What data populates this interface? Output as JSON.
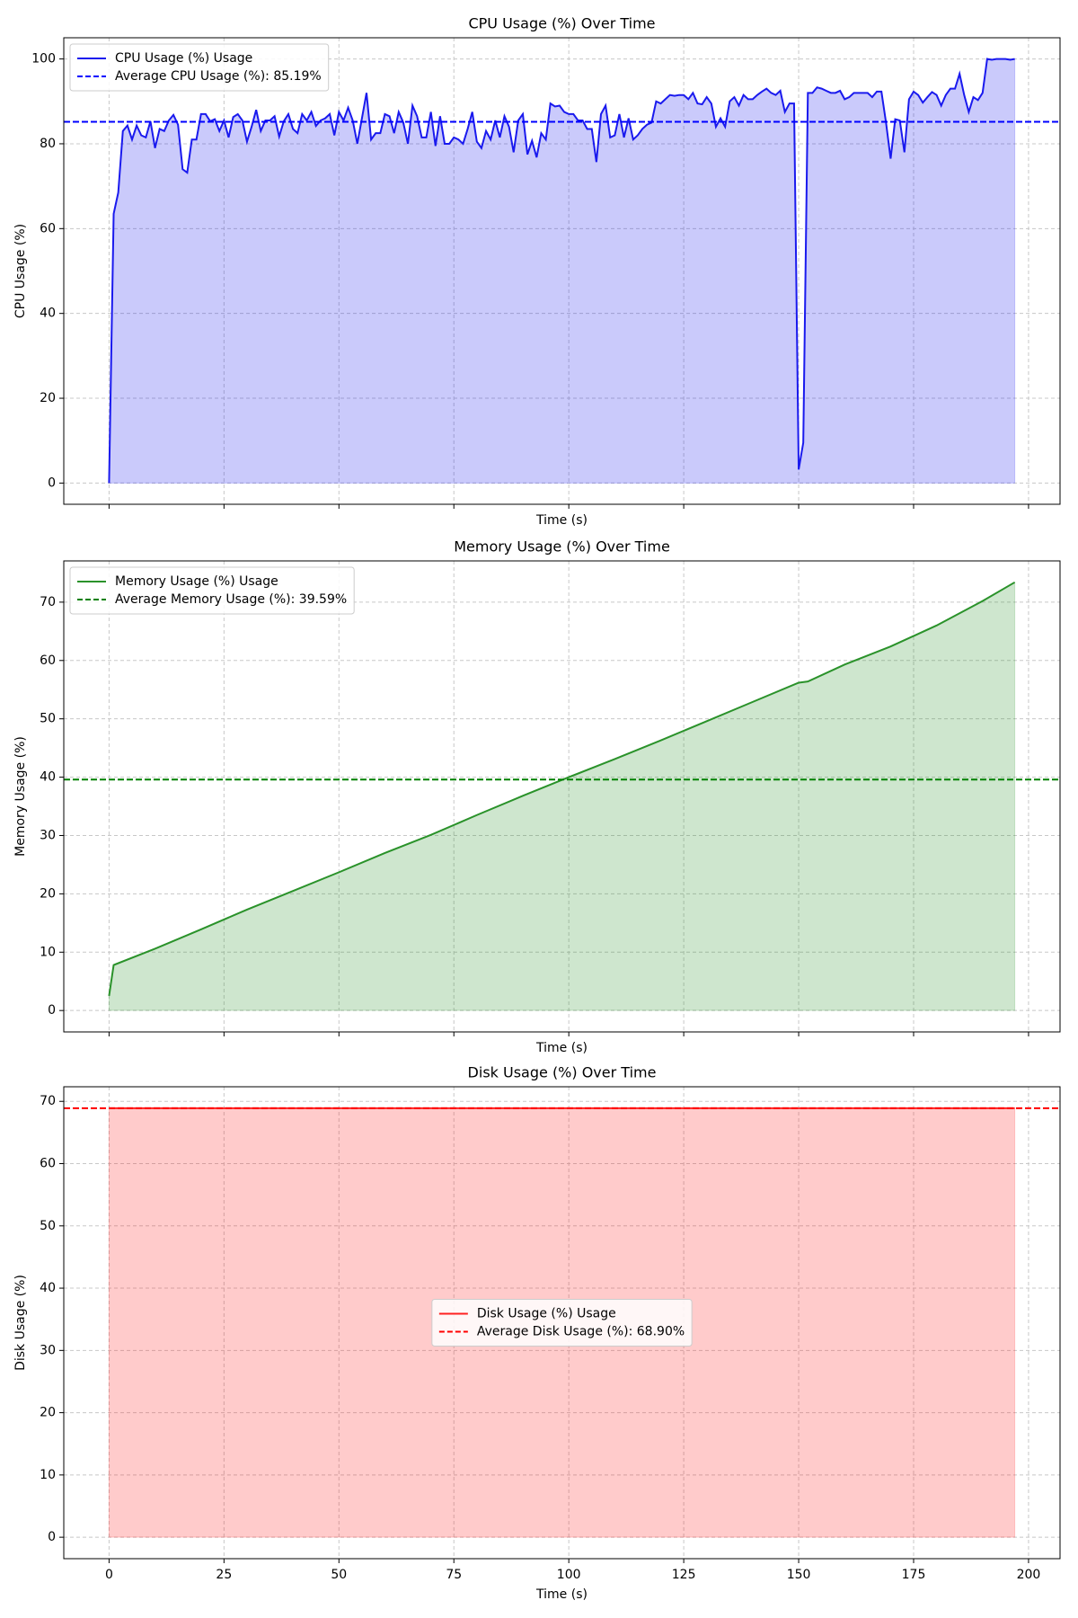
{
  "chart_data": [
    {
      "type": "line",
      "title": "CPU Usage (%) Over Time",
      "x_label": "Time (s)",
      "y_label": "CPU Usage (%)",
      "x": [
        0,
        1,
        2,
        3,
        4,
        5,
        6,
        7,
        8,
        9,
        10,
        11,
        12,
        13,
        14,
        15,
        16,
        17,
        18,
        19,
        20,
        21,
        22,
        23,
        24,
        25,
        26,
        27,
        28,
        29,
        30,
        31,
        32,
        33,
        34,
        35,
        36,
        37,
        38,
        39,
        40,
        41,
        42,
        43,
        44,
        45,
        46,
        47,
        48,
        49,
        50,
        51,
        52,
        53,
        54,
        55,
        56,
        57,
        58,
        59,
        60,
        61,
        62,
        63,
        64,
        65,
        66,
        67,
        68,
        69,
        70,
        71,
        72,
        73,
        74,
        75,
        76,
        77,
        78,
        79,
        80,
        81,
        82,
        83,
        84,
        85,
        86,
        87,
        88,
        89,
        90,
        91,
        92,
        93,
        94,
        95,
        96,
        97,
        98,
        99,
        100,
        101,
        102,
        103,
        104,
        105,
        106,
        107,
        108,
        109,
        110,
        111,
        112,
        113,
        114,
        115,
        116,
        117,
        118,
        119,
        120,
        121,
        122,
        123,
        124,
        125,
        126,
        127,
        128,
        129,
        130,
        131,
        132,
        133,
        134,
        135,
        136,
        137,
        138,
        139,
        140,
        141,
        142,
        143,
        144,
        145,
        146,
        147,
        148,
        149,
        150,
        151,
        152,
        153,
        154,
        155,
        156,
        157,
        158,
        159,
        160,
        161,
        162,
        163,
        164,
        165,
        166,
        167,
        168,
        169,
        170,
        171,
        172,
        173,
        174,
        175,
        176,
        177,
        178,
        179,
        180,
        181,
        182,
        183,
        184,
        185,
        186,
        187,
        188,
        189,
        190,
        191,
        192,
        193,
        194,
        195,
        196,
        197
      ],
      "series": [
        {
          "name": "CPU Usage (%) Usage",
          "color": "#1a1aee",
          "fill": true,
          "values": [
            0,
            63.5,
            68.5,
            83,
            84.3,
            81,
            84.3,
            82,
            81.5,
            85.3,
            79,
            83.5,
            83,
            85.5,
            86.8,
            84.5,
            74,
            73.2,
            81,
            81,
            87,
            87,
            85.3,
            85.8,
            83,
            85.5,
            81.5,
            86.3,
            87,
            85.5,
            80.5,
            84,
            88,
            83,
            85.5,
            85.5,
            86.5,
            81.7,
            85.3,
            87,
            83.5,
            82.5,
            87,
            85.5,
            87.5,
            84.2,
            85.5,
            86,
            87,
            82,
            87.5,
            85.5,
            88.5,
            85.5,
            80,
            86,
            92,
            81,
            82.5,
            82.5,
            87,
            86.5,
            82.5,
            87.5,
            85,
            80,
            89,
            86.5,
            81.5,
            81.5,
            87.5,
            79.5,
            86.5,
            80,
            80,
            81.5,
            81,
            80,
            83.5,
            87.5,
            80.5,
            79,
            83,
            81,
            85.5,
            81.5,
            86.5,
            84,
            78,
            85.5,
            87,
            77.5,
            80.7,
            76.8,
            82.5,
            81,
            89.5,
            88.8,
            89,
            87.5,
            87,
            87,
            85.5,
            85.5,
            83.5,
            83.5,
            75.7,
            87,
            89,
            81.5,
            82,
            87,
            81.5,
            86,
            81,
            82,
            83.5,
            84.5,
            85,
            90,
            89.5,
            90.5,
            91.5,
            91.3,
            91.5,
            91.5,
            90.5,
            92,
            89.5,
            89.3,
            91,
            89.5,
            84,
            86,
            84,
            90,
            91,
            89,
            91.5,
            90.5,
            90.5,
            91.5,
            92.3,
            93,
            92,
            91.5,
            92.5,
            87.5,
            89.5,
            89.5,
            3.2,
            9.5,
            92,
            92,
            93.3,
            93,
            92.5,
            92,
            92,
            92.5,
            90.5,
            91,
            92,
            92,
            92,
            92,
            91,
            92.3,
            92.3,
            85,
            76.5,
            85.8,
            85.5,
            78,
            90.5,
            92.3,
            91.5,
            89.7,
            91,
            92.2,
            91.5,
            89,
            91.5,
            93,
            93,
            96.5,
            91.5,
            87.5,
            91,
            90.3,
            92,
            100,
            99.8,
            100,
            100,
            100,
            99.8,
            100
          ]
        }
      ],
      "average": {
        "label": "Average CPU Usage (%): 85.19%",
        "value": 85.19,
        "color": "#0000ff"
      },
      "xlim": [
        -9.85,
        206.85
      ],
      "ylim": [
        -5,
        105
      ],
      "xticks": [
        0,
        25,
        50,
        75,
        100,
        125,
        150,
        175,
        200
      ],
      "yticks": [
        0,
        20,
        40,
        60,
        80,
        100
      ],
      "show_xtick_labels": false,
      "grid": true,
      "legend": "upper left"
    },
    {
      "type": "line",
      "title": "Memory Usage (%) Over Time",
      "x_label": "Time (s)",
      "y_label": "Memory Usage (%)",
      "x": [
        0,
        1,
        10,
        20,
        30,
        40,
        50,
        60,
        70,
        80,
        90,
        100,
        110,
        120,
        130,
        140,
        150,
        152,
        160,
        170,
        180,
        190,
        197
      ],
      "series": [
        {
          "name": "Memory Usage (%) Usage",
          "color": "#2a922a",
          "fill": true,
          "values": [
            2.5,
            7.8,
            10.6,
            13.9,
            17.3,
            20.5,
            23.7,
            27,
            30.1,
            33.5,
            36.8,
            40,
            43.1,
            46.3,
            49.6,
            52.9,
            56.2,
            56.4,
            59.3,
            62.4,
            66,
            70.2,
            73.4
          ]
        }
      ],
      "average": {
        "label": "Average Memory Usage (%): 39.59%",
        "value": 39.59,
        "color": "#008000"
      },
      "xlim": [
        -9.85,
        206.85
      ],
      "ylim": [
        -3.67,
        77.07
      ],
      "xticks": [
        0,
        25,
        50,
        75,
        100,
        125,
        150,
        175,
        200
      ],
      "yticks": [
        0,
        10,
        20,
        30,
        40,
        50,
        60,
        70
      ],
      "show_xtick_labels": false,
      "grid": true,
      "legend": "upper left"
    },
    {
      "type": "line",
      "title": "Disk Usage (%) Over Time",
      "x_label": "Time (s)",
      "y_label": "Disk Usage (%)",
      "x": [
        0,
        197
      ],
      "series": [
        {
          "name": "Disk Usage (%) Usage",
          "color": "#ff2020",
          "fill": true,
          "values": [
            68.9,
            68.9
          ]
        }
      ],
      "average": {
        "label": "Average Disk Usage (%): 68.90%",
        "value": 68.9,
        "color": "#ff0000"
      },
      "xlim": [
        -9.85,
        206.85
      ],
      "ylim": [
        -3.445,
        72.345
      ],
      "xticks": [
        0,
        25,
        50,
        75,
        100,
        125,
        150,
        175,
        200
      ],
      "yticks": [
        0,
        10,
        20,
        30,
        40,
        50,
        60,
        70
      ],
      "show_xtick_labels": true,
      "grid": true,
      "legend": "center"
    }
  ]
}
